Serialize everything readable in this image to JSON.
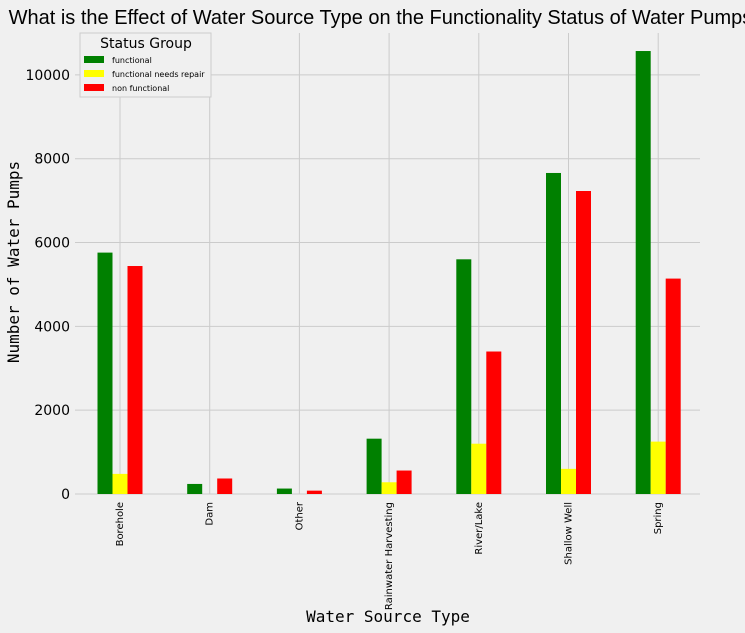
{
  "chart_data": {
    "type": "bar",
    "title": "What is the Effect of Water Source Type on the Functionality Status of Water Pumps?",
    "xlabel": "Water Source Type",
    "ylabel": "Number of Water Pumps",
    "categories": [
      "Borehole",
      "Dam",
      "Other",
      "Rainwater Harvesting",
      "River/Lake",
      "Shallow Well",
      "Spring"
    ],
    "series": [
      {
        "name": "functional",
        "color": "#008000",
        "values": [
          5760,
          240,
          130,
          1320,
          5600,
          7660,
          10570
        ]
      },
      {
        "name": "functional needs repair",
        "color": "#ffff00",
        "values": [
          480,
          0,
          0,
          280,
          1200,
          600,
          1250
        ]
      },
      {
        "name": "non functional",
        "color": "#ff0000",
        "values": [
          5440,
          370,
          80,
          560,
          3400,
          7230,
          5140
        ]
      }
    ],
    "ylim": [
      0,
      11000
    ],
    "yticks": [
      0,
      2000,
      4000,
      6000,
      8000,
      10000
    ],
    "grid": true,
    "legend": {
      "title": "Status Group",
      "placement": "top-left"
    }
  }
}
